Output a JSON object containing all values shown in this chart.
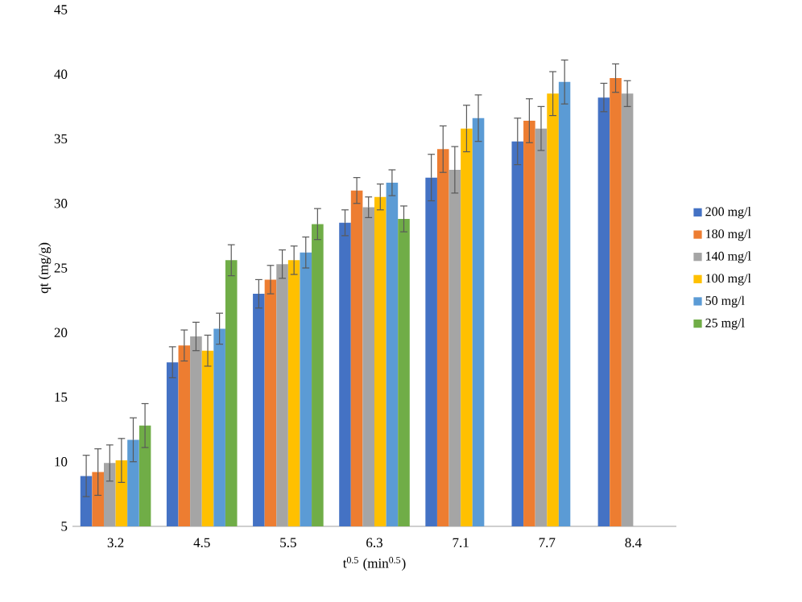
{
  "chart_data": {
    "type": "bar",
    "xlabel": "t$^{0.5}$ (min$^{0.5}$)",
    "ylabel": "qt (mg/g)",
    "categories": [
      "3.2",
      "4.5",
      "5.5",
      "6.3",
      "7.1",
      "7.7",
      "8.4"
    ],
    "ylim": [
      5,
      45
    ],
    "yticks": [
      5,
      10,
      15,
      20,
      25,
      30,
      35,
      40,
      45
    ],
    "legend": "right",
    "grid": false,
    "series": [
      {
        "name": "200 mg/l",
        "color": "#4472c4",
        "values": [
          8.9,
          17.7,
          23.0,
          28.5,
          32.0,
          34.8,
          38.2
        ],
        "errors": [
          1.6,
          1.2,
          1.1,
          1.0,
          1.8,
          1.8,
          1.1
        ]
      },
      {
        "name": "180 mg/l",
        "color": "#ed7d31",
        "values": [
          9.2,
          19.0,
          24.1,
          31.0,
          34.2,
          36.4,
          39.7
        ],
        "errors": [
          1.8,
          1.2,
          1.1,
          1.0,
          1.8,
          1.7,
          1.1
        ]
      },
      {
        "name": "140 mg/l",
        "color": "#a5a5a5",
        "values": [
          9.9,
          19.7,
          25.3,
          29.7,
          32.6,
          35.8,
          38.5
        ],
        "errors": [
          1.4,
          1.1,
          1.1,
          0.8,
          1.8,
          1.7,
          1.0
        ]
      },
      {
        "name": "100 mg/l",
        "color": "#ffc000",
        "values": [
          10.1,
          18.6,
          25.6,
          30.5,
          35.8,
          38.5,
          null
        ],
        "errors": [
          1.7,
          1.2,
          1.1,
          1.0,
          1.8,
          1.7,
          null
        ]
      },
      {
        "name": "50 mg/l",
        "color": "#5b9bd5",
        "values": [
          11.7,
          20.3,
          26.2,
          31.6,
          36.6,
          39.4,
          null
        ],
        "errors": [
          1.7,
          1.2,
          1.2,
          1.0,
          1.8,
          1.7,
          null
        ]
      },
      {
        "name": "25 mg/l",
        "color": "#70ad47",
        "values": [
          12.8,
          25.6,
          28.4,
          28.8,
          null,
          null,
          null
        ],
        "errors": [
          1.7,
          1.2,
          1.2,
          1.0,
          null,
          null,
          null
        ]
      }
    ]
  }
}
